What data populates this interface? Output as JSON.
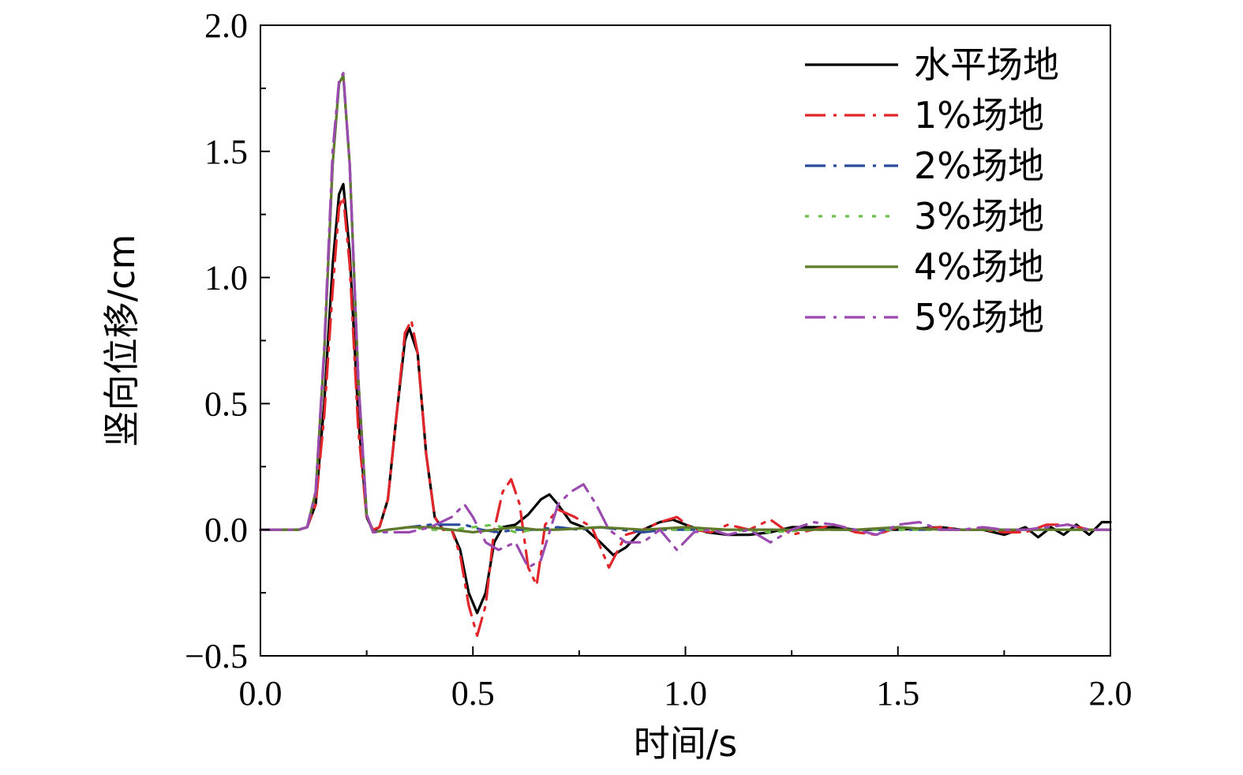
{
  "chart_data": {
    "type": "line",
    "title": "",
    "xlabel": "时间/s",
    "ylabel": "竖向位移/cm",
    "xlim": [
      0.0,
      2.0
    ],
    "ylim": [
      -0.5,
      2.0
    ],
    "xticks": [
      0.0,
      0.5,
      1.0,
      1.5,
      2.0
    ],
    "xtick_labels": [
      "0.0",
      "0.5",
      "1.0",
      "1.5",
      "2.0"
    ],
    "yticks": [
      -0.5,
      0.0,
      0.5,
      1.0,
      1.5,
      2.0
    ],
    "ytick_labels": [
      "−0.5",
      "0.0",
      "0.5",
      "1.0",
      "1.5",
      "2.0"
    ],
    "grid": false,
    "legend_position": "top-right",
    "series": [
      {
        "name": "水平场地",
        "color": "#000000",
        "dash": "solid",
        "x": [
          0,
          0.09,
          0.11,
          0.13,
          0.15,
          0.17,
          0.185,
          0.195,
          0.21,
          0.23,
          0.25,
          0.265,
          0.28,
          0.3,
          0.32,
          0.34,
          0.35,
          0.37,
          0.39,
          0.41,
          0.43,
          0.45,
          0.47,
          0.49,
          0.51,
          0.53,
          0.55,
          0.57,
          0.6,
          0.63,
          0.66,
          0.68,
          0.7,
          0.73,
          0.76,
          0.8,
          0.83,
          0.86,
          0.9,
          0.94,
          0.97,
          1.0,
          1.05,
          1.1,
          1.15,
          1.2,
          1.25,
          1.3,
          1.35,
          1.4,
          1.45,
          1.5,
          1.55,
          1.6,
          1.65,
          1.7,
          1.75,
          1.8,
          1.83,
          1.86,
          1.89,
          1.92,
          1.95,
          1.98,
          2.0
        ],
        "y": [
          0,
          0,
          0.01,
          0.1,
          0.5,
          1.05,
          1.33,
          1.37,
          1.1,
          0.45,
          0.05,
          -0.005,
          0.01,
          0.12,
          0.45,
          0.75,
          0.8,
          0.7,
          0.3,
          0.05,
          0.0,
          0.0,
          -0.08,
          -0.25,
          -0.33,
          -0.25,
          -0.05,
          0.01,
          0.02,
          0.06,
          0.12,
          0.14,
          0.1,
          0.03,
          0.01,
          -0.05,
          -0.1,
          -0.07,
          0.0,
          0.03,
          0.04,
          0.02,
          -0.01,
          -0.02,
          -0.02,
          -0.01,
          0.01,
          0.01,
          0.01,
          0.0,
          0.0,
          0.0,
          0.005,
          0.01,
          0.0,
          0.0,
          -0.02,
          0.01,
          -0.03,
          0.01,
          -0.02,
          0.02,
          -0.02,
          0.03,
          0.03
        ]
      },
      {
        "name": "1%场地",
        "color": "#e0262b",
        "dash": "dash-dot",
        "x": [
          0,
          0.09,
          0.11,
          0.13,
          0.15,
          0.17,
          0.185,
          0.195,
          0.21,
          0.23,
          0.25,
          0.265,
          0.28,
          0.3,
          0.32,
          0.34,
          0.355,
          0.37,
          0.39,
          0.41,
          0.43,
          0.45,
          0.47,
          0.49,
          0.51,
          0.53,
          0.55,
          0.57,
          0.59,
          0.61,
          0.63,
          0.65,
          0.67,
          0.7,
          0.74,
          0.78,
          0.82,
          0.86,
          0.9,
          0.94,
          0.98,
          1.02,
          1.06,
          1.1,
          1.15,
          1.2,
          1.25,
          1.3,
          1.35,
          1.4,
          1.45,
          1.5,
          1.55,
          1.6,
          1.65,
          1.7,
          1.75,
          1.8,
          1.85,
          1.9,
          1.95,
          2.0
        ],
        "y": [
          0,
          0,
          0.01,
          0.1,
          0.45,
          0.95,
          1.28,
          1.32,
          1.05,
          0.4,
          0.05,
          0.0,
          0.01,
          0.12,
          0.45,
          0.78,
          0.83,
          0.7,
          0.3,
          0.05,
          0.0,
          0.0,
          -0.1,
          -0.3,
          -0.42,
          -0.3,
          0.0,
          0.15,
          0.2,
          0.1,
          -0.15,
          -0.22,
          0.02,
          0.08,
          0.05,
          0.01,
          -0.15,
          -0.02,
          0.0,
          0.03,
          0.05,
          0.0,
          -0.01,
          0.02,
          0.0,
          0.04,
          -0.02,
          0.0,
          0.02,
          -0.01,
          -0.02,
          0.01,
          0.0,
          0.01,
          0.0,
          0.0,
          -0.01,
          -0.01,
          0.02,
          0.02,
          0.0,
          0.0
        ]
      },
      {
        "name": "2%场地",
        "color": "#2a4b9b",
        "dash": "dash-dot",
        "x": [
          0,
          0.09,
          0.11,
          0.13,
          0.15,
          0.17,
          0.185,
          0.195,
          0.21,
          0.23,
          0.25,
          0.265,
          0.3,
          0.35,
          0.4,
          0.45,
          0.48,
          0.52,
          0.56,
          0.6,
          0.65,
          0.7,
          0.75,
          0.8,
          0.85,
          0.9,
          0.95,
          1.0,
          1.1,
          1.2,
          1.3,
          1.4,
          1.5,
          1.6,
          1.7,
          1.8,
          1.9,
          2.0
        ],
        "y": [
          0,
          0,
          0.01,
          0.15,
          0.7,
          1.45,
          1.77,
          1.8,
          1.45,
          0.6,
          0.06,
          -0.01,
          0.0,
          0.01,
          0.02,
          0.02,
          0.02,
          0.0,
          -0.01,
          0.0,
          0.0,
          0.01,
          0.0,
          0.01,
          0.0,
          -0.01,
          0.0,
          0.0,
          0.0,
          0.0,
          0.0,
          0.0,
          0.0,
          0.0,
          0.0,
          0.0,
          0.0,
          0.0
        ]
      },
      {
        "name": "3%场地",
        "color": "#6cc04a",
        "dash": "dot",
        "x": [
          0,
          0.09,
          0.11,
          0.13,
          0.15,
          0.17,
          0.185,
          0.195,
          0.21,
          0.23,
          0.25,
          0.265,
          0.3,
          0.35,
          0.4,
          0.45,
          0.5,
          0.55,
          0.6,
          0.65,
          0.7,
          0.8,
          0.9,
          1.0,
          1.1,
          1.2,
          1.3,
          1.4,
          1.5,
          1.6,
          1.7,
          1.8,
          1.9,
          2.0
        ],
        "y": [
          0,
          0,
          0.01,
          0.15,
          0.7,
          1.45,
          1.77,
          1.8,
          1.45,
          0.6,
          0.06,
          -0.01,
          0.0,
          0.01,
          0.0,
          0.0,
          0.01,
          0.02,
          -0.01,
          0.0,
          0.0,
          0.01,
          0.0,
          0.0,
          0.0,
          -0.01,
          0.0,
          0.0,
          0.0,
          0.0,
          0.0,
          0.0,
          0.0,
          0.0
        ]
      },
      {
        "name": "4%场地",
        "color": "#5e7a2a",
        "dash": "solid",
        "x": [
          0,
          0.09,
          0.11,
          0.13,
          0.15,
          0.17,
          0.185,
          0.195,
          0.21,
          0.23,
          0.25,
          0.265,
          0.3,
          0.35,
          0.4,
          0.45,
          0.5,
          0.55,
          0.6,
          0.65,
          0.7,
          0.8,
          0.9,
          1.0,
          1.1,
          1.2,
          1.3,
          1.4,
          1.5,
          1.6,
          1.7,
          1.8,
          1.9,
          2.0
        ],
        "y": [
          0,
          0,
          0.01,
          0.15,
          0.7,
          1.45,
          1.77,
          1.8,
          1.45,
          0.6,
          0.06,
          -0.01,
          0.0,
          0.01,
          0.01,
          0.0,
          -0.01,
          0.0,
          0.01,
          0.0,
          0.0,
          0.01,
          0.0,
          0.01,
          0.0,
          0.0,
          0.0,
          0.0,
          0.01,
          0.0,
          0.0,
          0.0,
          0.0,
          0.0
        ]
      },
      {
        "name": "5%场地",
        "color": "#9b4bb0",
        "dash": "dash-dot",
        "x": [
          0,
          0.09,
          0.11,
          0.13,
          0.15,
          0.17,
          0.185,
          0.195,
          0.21,
          0.23,
          0.25,
          0.265,
          0.3,
          0.35,
          0.4,
          0.45,
          0.48,
          0.5,
          0.53,
          0.56,
          0.6,
          0.63,
          0.66,
          0.7,
          0.73,
          0.76,
          0.79,
          0.82,
          0.86,
          0.9,
          0.94,
          0.98,
          1.02,
          1.06,
          1.1,
          1.15,
          1.2,
          1.25,
          1.3,
          1.35,
          1.4,
          1.45,
          1.5,
          1.55,
          1.6,
          1.65,
          1.7,
          1.75,
          1.8,
          1.85,
          1.9,
          1.95,
          2.0
        ],
        "y": [
          0,
          0,
          0.01,
          0.15,
          0.72,
          1.5,
          1.78,
          1.81,
          1.45,
          0.6,
          0.06,
          -0.01,
          -0.01,
          -0.01,
          0.01,
          0.05,
          0.1,
          0.05,
          -0.05,
          -0.08,
          -0.05,
          -0.15,
          -0.12,
          0.1,
          0.15,
          0.18,
          0.1,
          0.0,
          -0.05,
          -0.05,
          0.0,
          -0.08,
          -0.01,
          0.0,
          -0.02,
          0.0,
          -0.05,
          0.0,
          0.03,
          0.02,
          0.0,
          -0.02,
          0.02,
          0.03,
          0.0,
          0.0,
          0.01,
          0.0,
          0.0,
          0.01,
          0.02,
          0.0,
          0.0
        ]
      }
    ]
  }
}
